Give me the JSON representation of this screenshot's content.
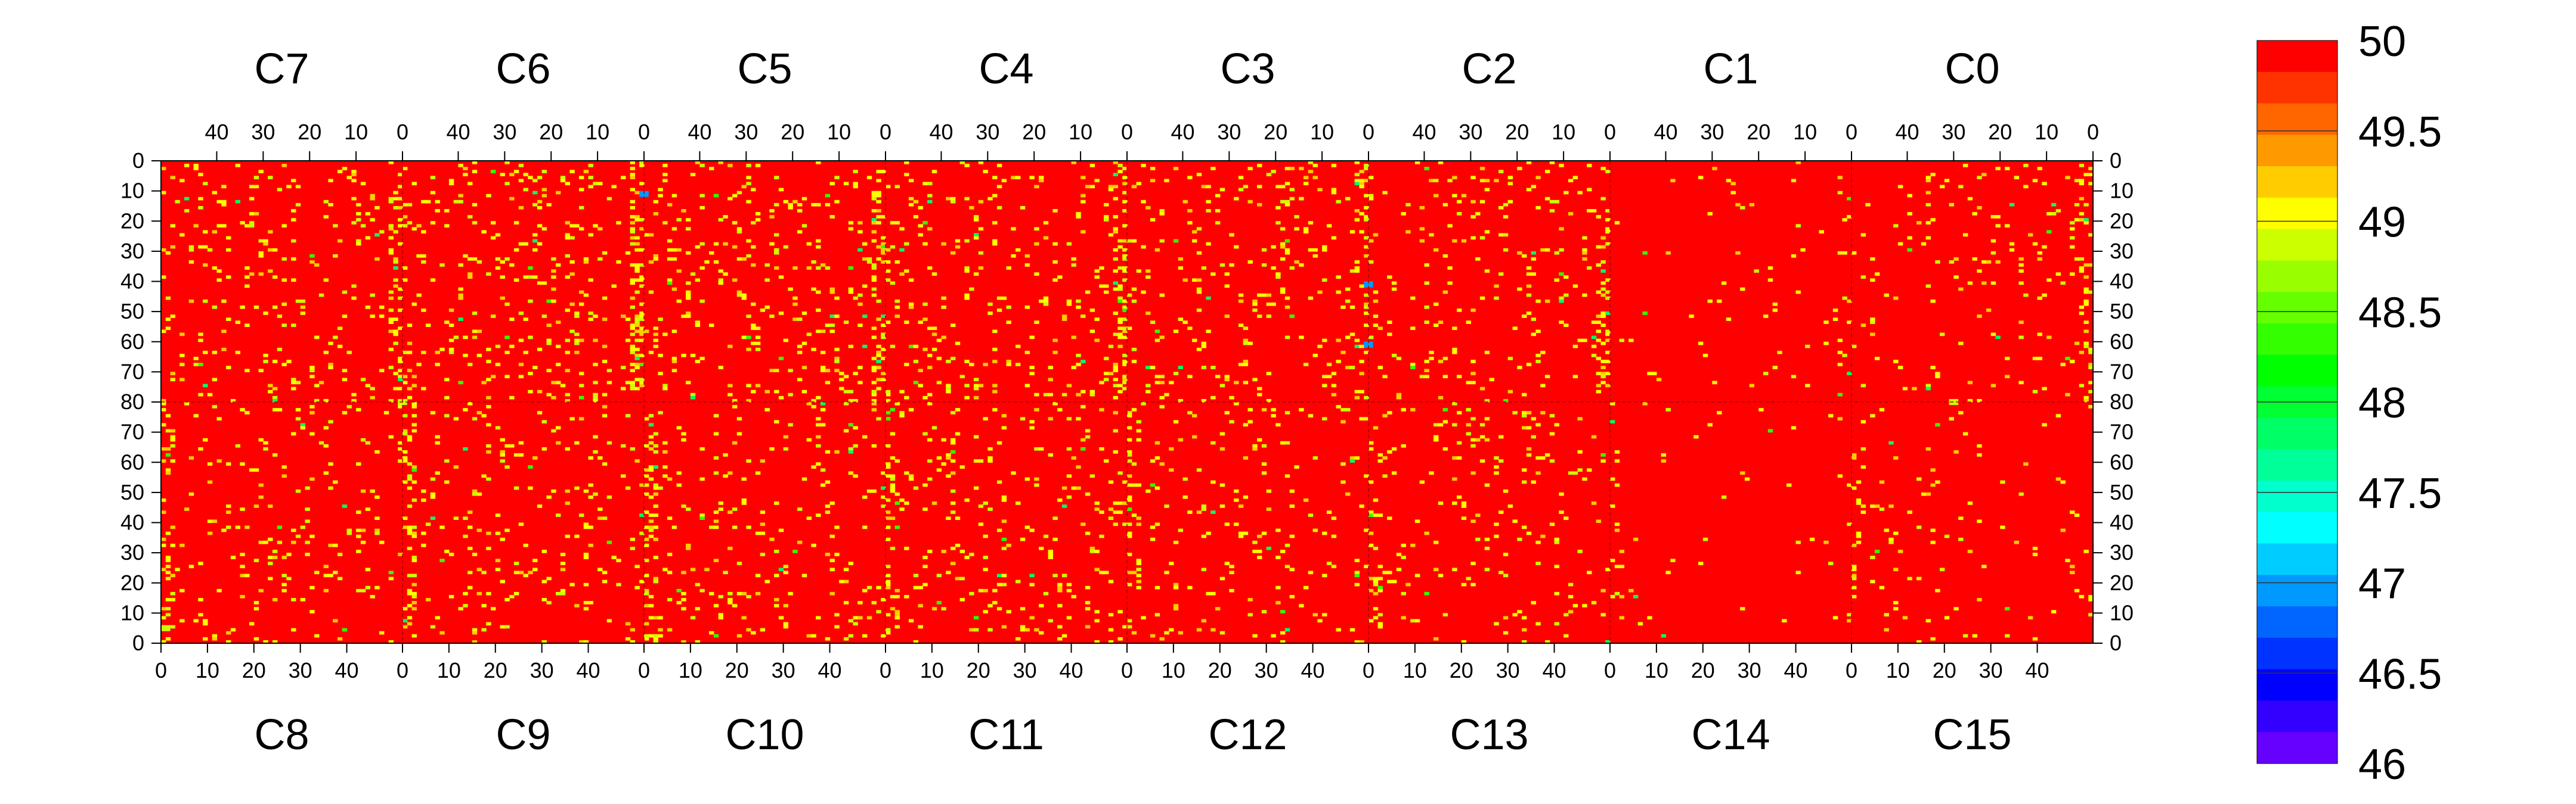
{
  "chart_data": {
    "type": "heatmap",
    "title": "",
    "top_chip_labels": [
      "C7",
      "C6",
      "C5",
      "C4",
      "C3",
      "C2",
      "C1",
      "C0"
    ],
    "bottom_chip_labels": [
      "C8",
      "C9",
      "C10",
      "C11",
      "C12",
      "C13",
      "C14",
      "C15"
    ],
    "columns_per_chip": 52,
    "rows_per_half": 80,
    "top_x_ticks": [
      40,
      30,
      20,
      10,
      0
    ],
    "bottom_x_ticks": [
      0,
      10,
      20,
      30,
      40
    ],
    "y_ticks_upper": [
      0,
      10,
      20,
      30,
      40,
      50,
      60,
      70,
      80
    ],
    "y_ticks_lower": [
      70,
      60,
      50,
      40,
      30,
      20,
      10,
      0
    ],
    "colorbar": {
      "min": 46,
      "max": 50,
      "tick_labels": [
        "50",
        "49.5",
        "49",
        "48.5",
        "48",
        "47.5",
        "47",
        "46.5",
        "46"
      ],
      "colors": [
        "#ff0000",
        "#ff3300",
        "#ff6600",
        "#ff9900",
        "#ffcc00",
        "#ffff00",
        "#ccff00",
        "#99ff00",
        "#66ff00",
        "#33ff00",
        "#00ff00",
        "#00ff33",
        "#00ff66",
        "#00ff99",
        "#00ffcc",
        "#00ffff",
        "#00ccff",
        "#0099ff",
        "#0066ff",
        "#0033ff",
        "#0000ff",
        "#3300ff",
        "#6600ff"
      ]
    },
    "dominant_value": 50,
    "note_values": "Nearly all pixels read 50; scattered pixels read 49-49.5 (yellow/orange), a few 47-48.5 (green/blue).",
    "hot_spots": [
      {
        "chip": "C7",
        "col": 0,
        "row_half": "upper",
        "row": 80,
        "value": 49
      },
      {
        "chip": "C6",
        "col": 0,
        "row_half": "upper",
        "row": 10,
        "value": 47
      },
      {
        "chip": "C3",
        "col": 0,
        "row_half": "upper",
        "row": 40,
        "value": 47
      },
      {
        "chip": "C3",
        "col": 0,
        "row_half": "upper",
        "row": 60,
        "value": 47
      },
      {
        "chip": "C0",
        "col": 30,
        "row_half": "upper",
        "row": 80,
        "value": 49
      },
      {
        "chip": "C8",
        "col": 0,
        "row_half": "lower",
        "row": 5,
        "value": 49
      }
    ]
  }
}
